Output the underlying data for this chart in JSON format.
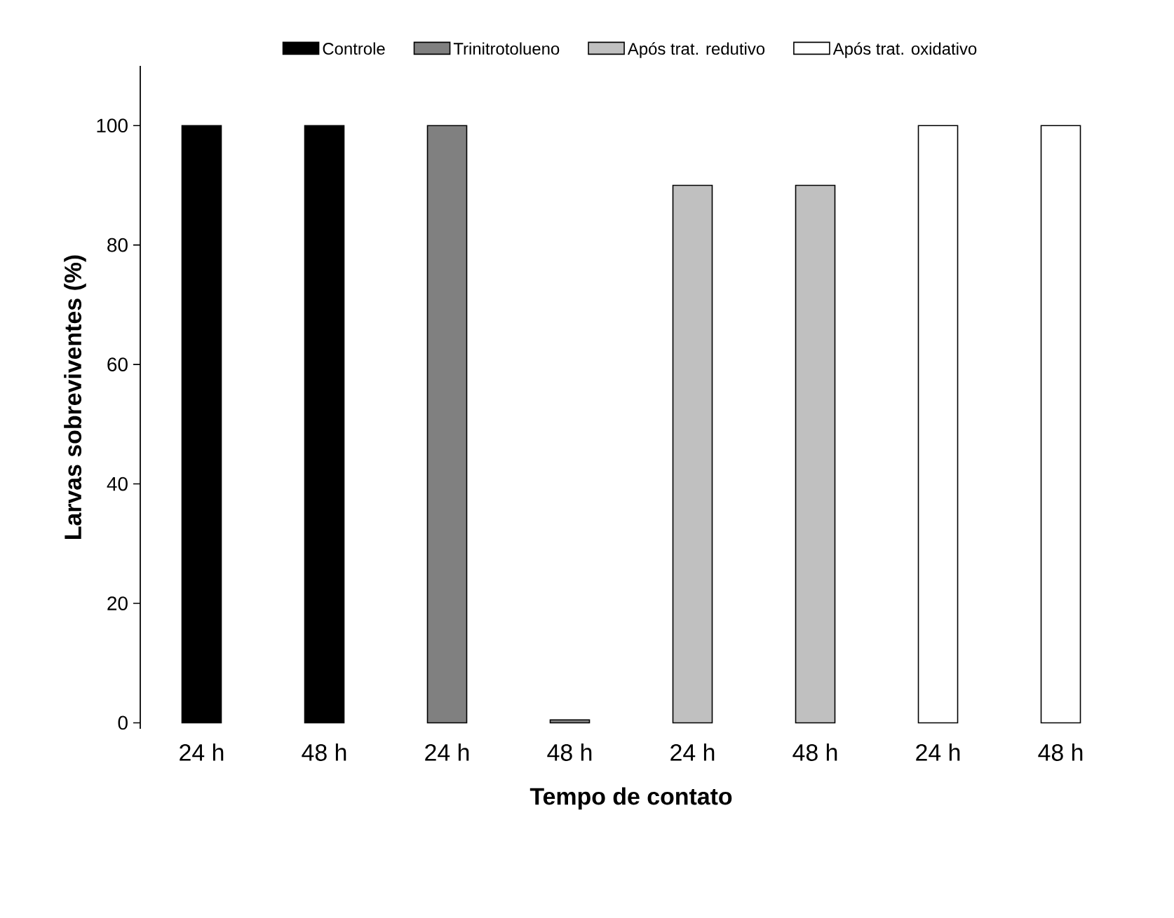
{
  "chart_data": {
    "type": "bar",
    "xlabel": "Tempo de contato",
    "ylabel": "Larvas sobreviventes (%)",
    "categories": [
      "24 h",
      "48 h",
      "24 h",
      "48 h",
      "24 h",
      "48 h",
      "24 h",
      "48 h"
    ],
    "series": [
      {
        "name": "Controle",
        "color": "#000000",
        "values": [
          100,
          100,
          null,
          null,
          null,
          null,
          null,
          null
        ]
      },
      {
        "name": "Trinitrotolueno",
        "color": "#808080",
        "values": [
          null,
          null,
          100,
          0.5,
          null,
          null,
          null,
          null
        ]
      },
      {
        "name": "Após trat. redutivo",
        "color": "#c0c0c0",
        "values": [
          null,
          null,
          null,
          null,
          90,
          90,
          null,
          null
        ]
      },
      {
        "name": "Após trat. oxidativo",
        "color": "#ffffff",
        "values": [
          null,
          null,
          null,
          null,
          null,
          null,
          100,
          100
        ]
      }
    ],
    "ylim": [
      -1,
      110
    ],
    "yticks": [
      0,
      20,
      40,
      60,
      80,
      100
    ],
    "legend": "top"
  }
}
